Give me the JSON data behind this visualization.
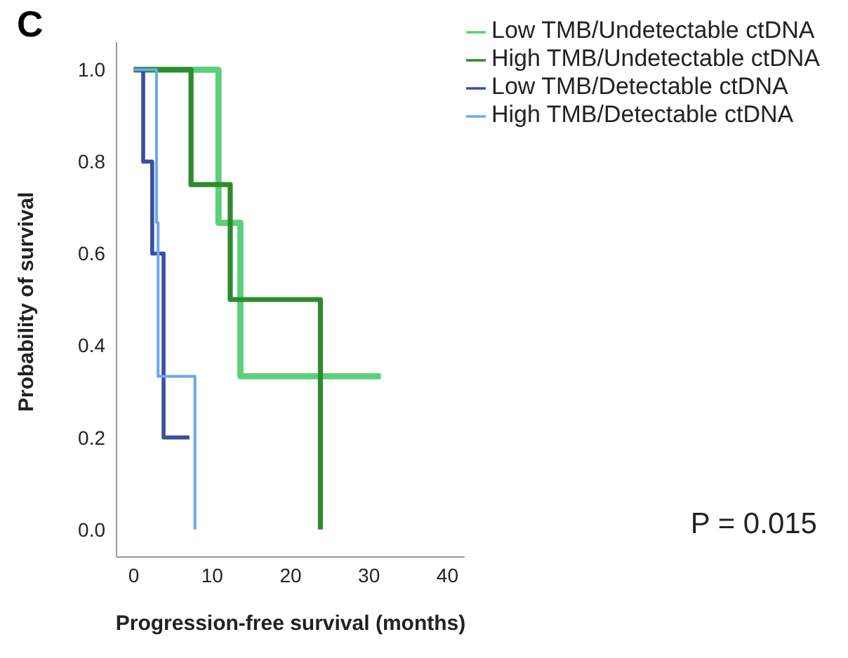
{
  "chart_data": {
    "type": "step",
    "title": "C",
    "xlabel": "Progression-free survival (months)",
    "ylabel": "Probability of survival",
    "annotations": [
      "P = 0.015"
    ],
    "xlim": [
      -2.2,
      42.2
    ],
    "xticks": [
      0,
      10,
      20,
      30,
      40
    ],
    "ylim": [
      -0.06,
      1.06
    ],
    "yticks": [
      {
        "value": 0,
        "label": "0.0"
      },
      {
        "value": 0.2,
        "label": "0.2"
      },
      {
        "value": 0.4,
        "label": "0.4"
      },
      {
        "value": 0.6,
        "label": "0.6"
      },
      {
        "value": 0.8,
        "label": "0.8"
      },
      {
        "value": 1,
        "label": "1.0"
      }
    ],
    "grid": false,
    "legend": "top right",
    "line_style": "solid",
    "series": [
      {
        "name": "Low TMB/Undetectable ctDNA",
        "color": "#5ccf7a",
        "x": [
          0,
          10.8,
          13.6,
          31.5
        ],
        "values": [
          1,
          0.667,
          0.333,
          0.333
        ]
      },
      {
        "name": "High TMB/Undetectable ctDNA",
        "color": "#2e8b2e",
        "x": [
          0,
          7.3,
          12.3,
          23.8
        ],
        "values": [
          1,
          0.75,
          0.5,
          0
        ]
      },
      {
        "name": "Low TMB/Detectable ctDNA",
        "color": "#3b4fa0",
        "x": [
          0,
          1.2,
          2.35,
          3.8,
          7.1
        ],
        "values": [
          1,
          0.8,
          0.6,
          0.2,
          0.2
        ]
      },
      {
        "name": "High TMB/Detectable ctDNA",
        "color": "#6aa8ec",
        "x": [
          0,
          2.9,
          3.1,
          7.8
        ],
        "values": [
          1,
          0.667,
          0.333,
          0
        ]
      }
    ]
  }
}
